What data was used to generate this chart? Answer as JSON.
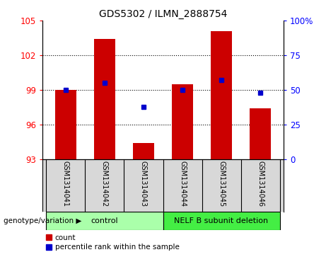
{
  "title": "GDS5302 / ILMN_2888754",
  "samples": [
    "GSM1314041",
    "GSM1314042",
    "GSM1314043",
    "GSM1314044",
    "GSM1314045",
    "GSM1314046"
  ],
  "counts": [
    99.0,
    103.4,
    94.4,
    99.5,
    104.1,
    97.4
  ],
  "percentiles": [
    50,
    55,
    38,
    50,
    57,
    48
  ],
  "ylim_left": [
    93,
    105
  ],
  "ylim_right": [
    0,
    100
  ],
  "yticks_left": [
    93,
    96,
    99,
    102,
    105
  ],
  "yticks_right": [
    0,
    25,
    50,
    75,
    100
  ],
  "ytick_labels_right": [
    "0",
    "25",
    "50",
    "75",
    "100%"
  ],
  "hlines": [
    96,
    99,
    102
  ],
  "groups": [
    {
      "label": "control",
      "indices": [
        0,
        1,
        2
      ],
      "color": "#aaffaa"
    },
    {
      "label": "NELF B subunit deletion",
      "indices": [
        3,
        4,
        5
      ],
      "color": "#44ee44"
    }
  ],
  "bar_color": "#cc0000",
  "dot_color": "#0000cc",
  "bar_width": 0.55,
  "bg_color": "#d8d8d8",
  "legend_items": [
    {
      "label": "count",
      "color": "#cc0000"
    },
    {
      "label": "percentile rank within the sample",
      "color": "#0000cc"
    }
  ],
  "genotype_label": "genotype/variation ▶"
}
